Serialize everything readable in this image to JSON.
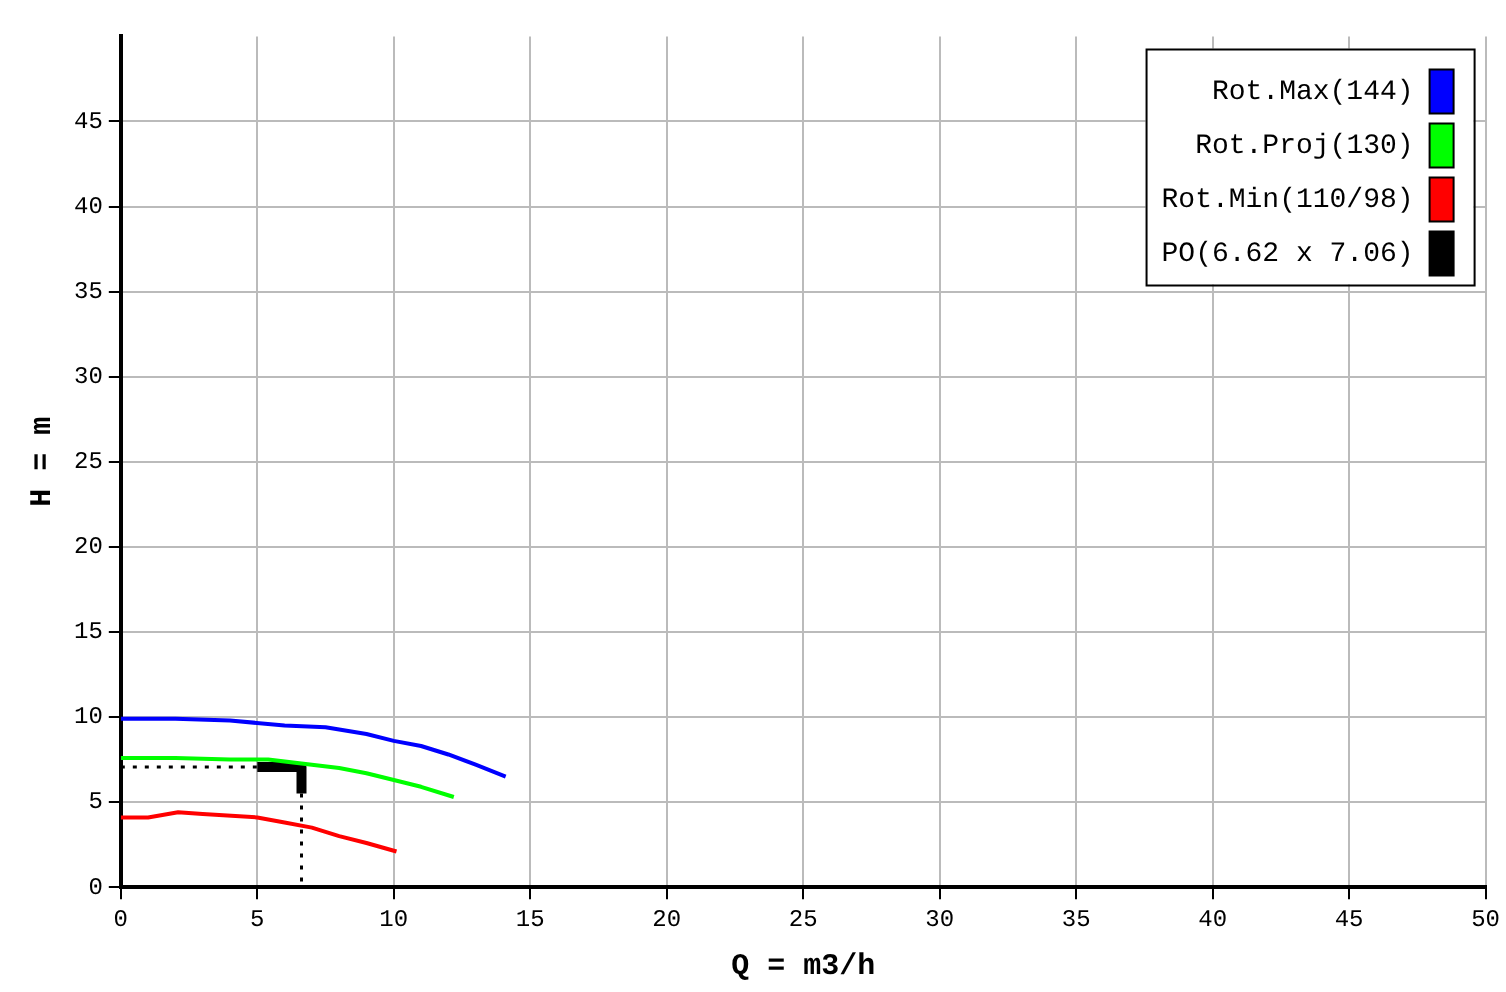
{
  "chart_data": {
    "type": "line",
    "xlabel": "Q = m3/h",
    "ylabel": "H = m",
    "xlim": [
      0,
      50
    ],
    "xticks": [
      0,
      5,
      10,
      15,
      20,
      25,
      30,
      35,
      40,
      45,
      50
    ],
    "ylim": [
      0,
      50
    ],
    "yticks": [
      0,
      5,
      10,
      15,
      20,
      25,
      30,
      35,
      40,
      45
    ],
    "grid": true,
    "legend": "top right",
    "marker": "none",
    "series": [
      {
        "name": "Rot.Max(144)",
        "color": "#0000ff",
        "x": [
          0,
          2,
          4,
          6,
          7.5,
          9,
          10,
          11,
          12,
          13,
          14.1
        ],
        "values": [
          9.9,
          9.9,
          9.8,
          9.5,
          9.4,
          9.0,
          8.6,
          8.3,
          7.8,
          7.2,
          6.5
        ]
      },
      {
        "name": "Rot.Proj(130)",
        "color": "#00ff00",
        "x": [
          0,
          2,
          4,
          5.4,
          7,
          8,
          9,
          10,
          11,
          12.2
        ],
        "values": [
          7.6,
          7.6,
          7.5,
          7.5,
          7.2,
          7.0,
          6.7,
          6.3,
          5.9,
          5.3
        ]
      },
      {
        "name": "Rot.Min(110/98)",
        "color": "#ff0000",
        "x": [
          0,
          1,
          2.1,
          3,
          5,
          6,
          7,
          8,
          9,
          10.1
        ],
        "values": [
          4.1,
          4.1,
          4.4,
          4.3,
          4.1,
          3.8,
          3.5,
          3.0,
          2.6,
          2.1
        ]
      },
      {
        "name": "PO(6.62 x 7.06)",
        "color": "#000000",
        "line_style": "dotted",
        "x": [
          0,
          5,
          6.62,
          6.62,
          6.62
        ],
        "values": [
          7.06,
          7.06,
          7.06,
          5.5,
          0
        ]
      }
    ]
  }
}
